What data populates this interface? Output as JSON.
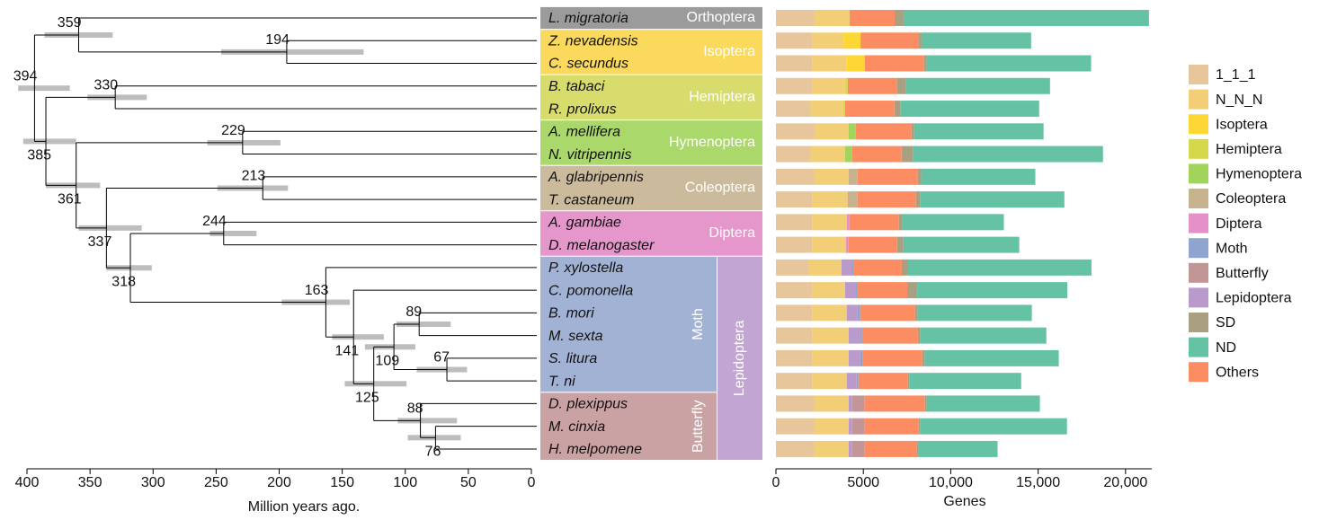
{
  "chart_data": [
    {
      "type": "tree",
      "xlabel": "Million years ago.",
      "xlim": [
        400,
        0
      ],
      "xticks": [
        400,
        350,
        300,
        250,
        200,
        150,
        100,
        50,
        0
      ],
      "ci_color": "#bdbdbd",
      "nodes": [
        {
          "age": 394,
          "ci": [
            407,
            366
          ],
          "nodes": [
            1,
            3
          ]
        },
        {
          "age": 359,
          "ci": [
            386,
            332
          ],
          "leaves": [
            0
          ],
          "nodes": [
            2
          ]
        },
        {
          "age": 194,
          "ci": [
            246,
            133
          ],
          "leaves": [
            1,
            2
          ]
        },
        {
          "age": 385,
          "ci": [
            403,
            361
          ],
          "nodes": [
            4,
            5
          ]
        },
        {
          "age": 330,
          "ci": [
            352,
            305
          ],
          "leaves": [
            3,
            4
          ]
        },
        {
          "age": 361,
          "ci": [
            385,
            342
          ],
          "nodes": [
            6,
            7
          ]
        },
        {
          "age": 229,
          "ci": [
            257,
            199
          ],
          "leaves": [
            5,
            6
          ]
        },
        {
          "age": 337,
          "ci": [
            359,
            309
          ],
          "nodes": [
            8,
            9
          ]
        },
        {
          "age": 213,
          "ci": [
            249,
            193
          ],
          "leaves": [
            7,
            8
          ]
        },
        {
          "age": 318,
          "ci": [
            337,
            301
          ],
          "nodes": [
            10,
            11
          ]
        },
        {
          "age": 244,
          "ci": [
            255,
            218
          ],
          "leaves": [
            9,
            10
          ]
        },
        {
          "age": 163,
          "ci": [
            198,
            144
          ],
          "leaves": [
            11
          ],
          "nodes": [
            12
          ]
        },
        {
          "age": 141,
          "ci": [
            158,
            117
          ],
          "leaves": [
            12
          ],
          "nodes": [
            13
          ]
        },
        {
          "age": 125,
          "ci": [
            148,
            99
          ],
          "nodes": [
            14,
            17
          ]
        },
        {
          "age": 109,
          "ci": [
            132,
            92
          ],
          "nodes": [
            15,
            16
          ]
        },
        {
          "age": 89,
          "ci": [
            107,
            64
          ],
          "leaves": [
            13,
            14
          ]
        },
        {
          "age": 67,
          "ci": [
            91,
            51
          ],
          "leaves": [
            15,
            16
          ]
        },
        {
          "age": 88,
          "ci": [
            106,
            59
          ],
          "leaves": [
            17
          ],
          "nodes": [
            18
          ]
        },
        {
          "age": 76,
          "ci": [
            98,
            56
          ],
          "leaves": [
            18,
            19
          ]
        }
      ],
      "clades": [
        {
          "name": "Orthoptera",
          "color": "#9b9b9b",
          "rows": [
            0,
            0
          ]
        },
        {
          "name": "Isoptera",
          "color": "#fbd95c",
          "rows": [
            1,
            2
          ]
        },
        {
          "name": "Hemiptera",
          "color": "#d8dc6c",
          "rows": [
            3,
            4
          ]
        },
        {
          "name": "Hymenoptera",
          "color": "#aad86a",
          "rows": [
            5,
            6
          ]
        },
        {
          "name": "Coleoptera",
          "color": "#cbbb9c",
          "rows": [
            7,
            8
          ]
        },
        {
          "name": "Diptera",
          "color": "#e596cb",
          "rows": [
            9,
            10
          ]
        },
        {
          "name": "Moth",
          "color": "#a2b2d4",
          "rows": [
            11,
            16
          ]
        },
        {
          "name": "Butterfly",
          "color": "#cba2a3",
          "rows": [
            17,
            19
          ]
        }
      ],
      "superclades": [
        {
          "name": "Lepidoptera",
          "color": "#c2a5d2",
          "rows": [
            11,
            19
          ]
        }
      ]
    },
    {
      "type": "stacked-barh",
      "xlabel": "Genes",
      "categories": [
        "L. migratoria",
        "Z. nevadensis",
        "C. secundus",
        "B. tabaci",
        "R. prolixus",
        "A. mellifera",
        "N. vitripennis",
        "A. glabripennis",
        "T. castaneum",
        "A. gambiae",
        "D. melanogaster",
        "P. xylostella",
        "C. pomonella",
        "B. mori",
        "M. sexta",
        "S. litura",
        "T. ni",
        "D. plexippus",
        "M. cinxia",
        "H. melpomene"
      ],
      "xlim": [
        0,
        21500
      ],
      "xticks": [
        0,
        5000,
        {
          "value": 10000,
          "label": "10,000"
        },
        {
          "value": 15000,
          "label": "15,000"
        },
        {
          "value": 20000,
          "label": "20,000"
        }
      ],
      "stack_order": [
        0,
        1,
        2,
        3,
        4,
        5,
        6,
        9,
        7,
        8,
        12,
        10,
        11
      ],
      "series": [
        {
          "name": "1_1_1",
          "color": "#e8c69c",
          "values": [
            2160,
            2060,
            2100,
            2060,
            2000,
            2160,
            2000,
            2160,
            2100,
            2100,
            2100,
            1850,
            2060,
            2100,
            2100,
            2100,
            2100,
            2160,
            2160,
            2160
          ]
        },
        {
          "name": "N_N_N",
          "color": "#f2cf76",
          "values": [
            2060,
            1800,
            1950,
            1950,
            1850,
            2000,
            1950,
            2000,
            2000,
            1950,
            1900,
            1900,
            1900,
            1950,
            2060,
            2060,
            1950,
            2000,
            2000,
            2000
          ]
        },
        {
          "name": "Isoptera",
          "color": "#fdd835",
          "values": [
            0,
            980,
            1030,
            0,
            0,
            0,
            0,
            0,
            0,
            0,
            0,
            0,
            0,
            0,
            0,
            0,
            0,
            0,
            0,
            0
          ]
        },
        {
          "name": "Hemiptera",
          "color": "#d4d84a",
          "values": [
            0,
            0,
            0,
            100,
            100,
            0,
            0,
            0,
            0,
            0,
            0,
            0,
            0,
            0,
            0,
            0,
            0,
            0,
            0,
            0
          ]
        },
        {
          "name": "Hymenoptera",
          "color": "#a2d45c",
          "values": [
            0,
            0,
            0,
            0,
            0,
            410,
            410,
            0,
            0,
            0,
            0,
            0,
            0,
            0,
            0,
            0,
            0,
            0,
            0,
            0
          ]
        },
        {
          "name": "Coleoptera",
          "color": "#c6b28e",
          "values": [
            0,
            0,
            0,
            0,
            0,
            0,
            0,
            510,
            570,
            0,
            0,
            0,
            0,
            0,
            0,
            0,
            0,
            0,
            0,
            0
          ]
        },
        {
          "name": "Diptera",
          "color": "#e590c9",
          "values": [
            0,
            0,
            0,
            0,
            0,
            0,
            0,
            0,
            0,
            150,
            150,
            0,
            0,
            0,
            0,
            0,
            0,
            0,
            0,
            0
          ]
        },
        {
          "name": "Moth",
          "color": "#8fa4cf",
          "values": [
            0,
            0,
            0,
            0,
            0,
            0,
            0,
            0,
            0,
            0,
            0,
            100,
            100,
            150,
            100,
            150,
            100,
            0,
            0,
            0
          ]
        },
        {
          "name": "Butterfly",
          "color": "#c29596",
          "values": [
            0,
            0,
            0,
            0,
            0,
            0,
            0,
            0,
            0,
            0,
            0,
            0,
            0,
            0,
            0,
            0,
            0,
            720,
            720,
            720
          ]
        },
        {
          "name": "Lepidoptera",
          "color": "#b99acb",
          "values": [
            0,
            0,
            0,
            0,
            0,
            0,
            0,
            0,
            0,
            0,
            0,
            570,
            570,
            620,
            670,
            670,
            570,
            200,
            200,
            200
          ]
        },
        {
          "name": "SD",
          "color": "#a9a081",
          "values": [
            510,
            150,
            150,
            510,
            360,
            150,
            670,
            200,
            260,
            200,
            360,
            360,
            570,
            150,
            150,
            150,
            100,
            100,
            100,
            100
          ]
        },
        {
          "name": "ND",
          "color": "#66c2a5",
          "values": [
            14040,
            6270,
            9410,
            8230,
            7920,
            7400,
            10850,
            6530,
            8230,
            5810,
            6630,
            10490,
            8590,
            6530,
            7200,
            7660,
            6380,
            6480,
            8380,
            4520
          ]
        },
        {
          "name": "Others",
          "color": "#fc8d62",
          "values": [
            2570,
            3340,
            3390,
            2830,
            2830,
            3190,
            2830,
            3440,
            3340,
            2830,
            2780,
            2780,
            2880,
            3140,
            3190,
            3390,
            2830,
            3440,
            3090,
            2980
          ]
        }
      ]
    }
  ]
}
